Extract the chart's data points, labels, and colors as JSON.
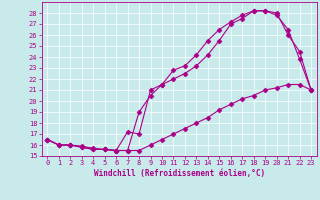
{
  "xlabel": "Windchill (Refroidissement éolien,°C)",
  "bg_color": "#c8eaea",
  "line_color": "#aa0088",
  "xlim": [
    -0.5,
    23.5
  ],
  "ylim": [
    15,
    29
  ],
  "yticks": [
    15,
    16,
    17,
    18,
    19,
    20,
    21,
    22,
    23,
    24,
    25,
    26,
    27,
    28
  ],
  "xticks": [
    0,
    1,
    2,
    3,
    4,
    5,
    6,
    7,
    8,
    9,
    10,
    11,
    12,
    13,
    14,
    15,
    16,
    17,
    18,
    19,
    20,
    21,
    22,
    23
  ],
  "line1_x": [
    0,
    1,
    2,
    3,
    4,
    5,
    6,
    7,
    8,
    9,
    10,
    11,
    12,
    13,
    14,
    15,
    16,
    17,
    18,
    19,
    20,
    21,
    22,
    23
  ],
  "line1_y": [
    16.5,
    16.0,
    16.0,
    15.8,
    15.6,
    15.6,
    15.5,
    15.5,
    19.0,
    20.5,
    21.5,
    22.8,
    23.2,
    24.2,
    25.5,
    26.5,
    27.2,
    27.8,
    28.2,
    28.2,
    27.8,
    26.5,
    23.8,
    21.0
  ],
  "line2_x": [
    0,
    1,
    2,
    3,
    4,
    5,
    6,
    7,
    8,
    9,
    10,
    11,
    12,
    13,
    14,
    15,
    16,
    17,
    18,
    19,
    20,
    21,
    22,
    23
  ],
  "line2_y": [
    16.5,
    16.0,
    16.0,
    15.8,
    15.6,
    15.6,
    15.5,
    17.2,
    17.0,
    21.0,
    21.5,
    22.0,
    22.5,
    23.2,
    24.2,
    25.5,
    27.0,
    27.5,
    28.2,
    28.2,
    28.0,
    26.0,
    24.5,
    21.0
  ],
  "line3_x": [
    0,
    1,
    2,
    3,
    4,
    5,
    6,
    7,
    8,
    9,
    10,
    11,
    12,
    13,
    14,
    15,
    16,
    17,
    18,
    19,
    20,
    21,
    22,
    23
  ],
  "line3_y": [
    16.5,
    16.0,
    16.0,
    15.9,
    15.7,
    15.6,
    15.5,
    15.5,
    15.5,
    16.0,
    16.5,
    17.0,
    17.5,
    18.0,
    18.5,
    19.2,
    19.7,
    20.2,
    20.5,
    21.0,
    21.2,
    21.5,
    21.5,
    21.0
  ],
  "grid_color": "#ffffff",
  "tick_fontsize": 5,
  "xlabel_fontsize": 5.5,
  "marker": "D",
  "markersize": 2.5,
  "linewidth": 0.8
}
